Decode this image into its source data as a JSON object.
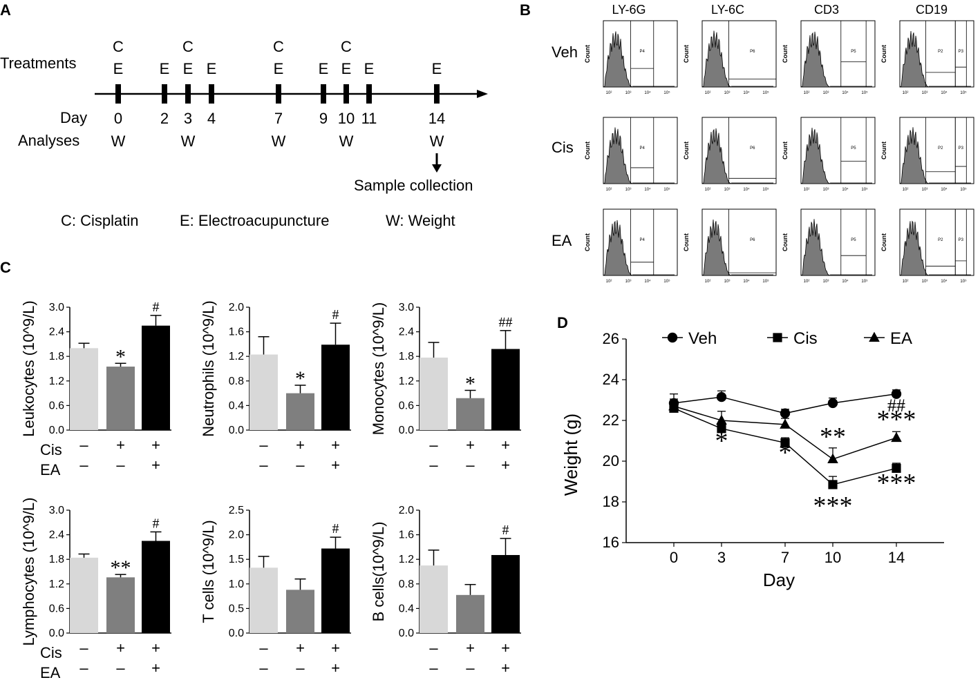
{
  "panels": {
    "a": "A",
    "b": "B",
    "c": "C",
    "d": "D"
  },
  "schedule": {
    "treatments_label": "Treatments",
    "day_label": "Day",
    "analyses_label": "Analyses",
    "days": [
      "0",
      "2",
      "3",
      "4",
      "7",
      "9",
      "10",
      "11",
      "14"
    ],
    "cisplatin_days": [
      "0",
      "3",
      "7",
      "10"
    ],
    "ea_days": [
      "0",
      "2",
      "3",
      "4",
      "7",
      "9",
      "10",
      "11",
      "14"
    ],
    "weight_days": [
      "0",
      "3",
      "7",
      "10",
      "14"
    ],
    "c_mark": "C",
    "e_mark": "E",
    "w_mark": "W",
    "sample_collection": "Sample collection",
    "legend": {
      "c": "C: Cisplatin",
      "e": "E: Electroacupuncture",
      "w": "W: Weight"
    }
  },
  "flow": {
    "columns": [
      "LY-6G",
      "LY-6C",
      "CD3",
      "CD19"
    ],
    "rows": [
      "Veh",
      "Cis",
      "EA"
    ],
    "axis_label": "Count",
    "gates": [
      "P4",
      "P6",
      "P5",
      "P2",
      "P3"
    ]
  },
  "design": {
    "cis_label": "Cis",
    "ea_label": "EA",
    "cis": [
      "–",
      "+",
      "+"
    ],
    "ea": [
      "–",
      "–",
      "+"
    ]
  },
  "colors": {
    "veh": "#d8d8d8",
    "cis": "#7f7f7f",
    "ea": "#000000"
  },
  "chart_data": [
    {
      "type": "bar",
      "ylabel": "Leukocytes (10^9/L)",
      "categories": [
        "Veh",
        "Cis",
        "EA"
      ],
      "values": [
        2.0,
        1.55,
        2.55
      ],
      "errors": [
        0.12,
        0.08,
        0.25
      ],
      "ylim": [
        0,
        3.0
      ],
      "ticks": [
        "0.0",
        "0.6",
        "1.2",
        "1.8",
        "2.4",
        "3.0"
      ],
      "annotations": [
        "",
        "*",
        "#"
      ]
    },
    {
      "type": "bar",
      "ylabel": "Neutrophils (10^9/L)",
      "categories": [
        "Veh",
        "Cis",
        "EA"
      ],
      "values": [
        1.23,
        0.6,
        1.39
      ],
      "errors": [
        0.29,
        0.13,
        0.35
      ],
      "ylim": [
        0,
        2.0
      ],
      "ticks": [
        "0.0",
        "0.4",
        "0.8",
        "1.2",
        "1.6",
        "2.0"
      ],
      "annotations": [
        "",
        "*",
        "#"
      ]
    },
    {
      "type": "bar",
      "ylabel": "Monocytes (10^9/L)",
      "categories": [
        "Veh",
        "Cis",
        "EA"
      ],
      "values": [
        1.77,
        0.78,
        1.98
      ],
      "errors": [
        0.37,
        0.19,
        0.45
      ],
      "ylim": [
        0,
        3.0
      ],
      "ticks": [
        "0.0",
        "0.6",
        "1.2",
        "1.8",
        "2.4",
        "3.0"
      ],
      "annotations": [
        "",
        "*",
        "##"
      ]
    },
    {
      "type": "bar",
      "ylabel": "Lymphocytes (10^9/L)",
      "categories": [
        "Veh",
        "Cis",
        "EA"
      ],
      "values": [
        1.84,
        1.36,
        2.25
      ],
      "errors": [
        0.09,
        0.07,
        0.22
      ],
      "ylim": [
        0,
        3.0
      ],
      "ticks": [
        "0.0",
        "0.6",
        "1.2",
        "1.8",
        "2.4",
        "3.0"
      ],
      "annotations": [
        "",
        "**",
        "#"
      ]
    },
    {
      "type": "bar",
      "ylabel": "T cells (10^9/L)",
      "categories": [
        "Veh",
        "Cis",
        "EA"
      ],
      "values": [
        1.33,
        0.88,
        1.72
      ],
      "errors": [
        0.23,
        0.22,
        0.23
      ],
      "ylim": [
        0,
        2.5
      ],
      "ticks": [
        "0.0",
        "0.5",
        "1.0",
        "1.5",
        "2.0",
        "2.5"
      ],
      "annotations": [
        "",
        "",
        "#"
      ]
    },
    {
      "type": "bar",
      "ylabel": "B cells(10^9/L)",
      "categories": [
        "Veh",
        "Cis",
        "EA"
      ],
      "values": [
        1.1,
        0.62,
        1.27
      ],
      "errors": [
        0.25,
        0.17,
        0.27
      ],
      "ylim": [
        0,
        2.0
      ],
      "ticks": [
        "0.0",
        "0.4",
        "0.8",
        "1.2",
        "1.6",
        "2.0"
      ],
      "annotations": [
        "",
        "",
        "#"
      ]
    },
    {
      "type": "line",
      "xlabel": "Day",
      "ylabel": "Weight (g)",
      "x": [
        0,
        3,
        7,
        10,
        14
      ],
      "xlim": [
        -3,
        17
      ],
      "ylim": [
        16,
        26
      ],
      "xticks": [
        "0",
        "3",
        "7",
        "10",
        "14"
      ],
      "yticks": [
        "16",
        "18",
        "20",
        "22",
        "24",
        "26"
      ],
      "series": [
        {
          "name": "Veh",
          "marker": "circle",
          "values": [
            22.85,
            23.15,
            22.35,
            22.85,
            23.3
          ],
          "errors": [
            0.45,
            0.3,
            0.2,
            0.25,
            0.2
          ]
        },
        {
          "name": "Cis",
          "marker": "square",
          "values": [
            22.6,
            21.6,
            20.9,
            18.85,
            19.65
          ],
          "errors": [
            0.3,
            0.3,
            0.25,
            0.4,
            0.25
          ]
        },
        {
          "name": "EA",
          "marker": "triangle",
          "values": [
            22.7,
            22.0,
            21.8,
            20.1,
            21.15
          ],
          "errors": [
            0.35,
            0.45,
            0.3,
            0.55,
            0.3
          ]
        }
      ],
      "annotations": [
        {
          "x": 3,
          "text": "*"
        },
        {
          "x": 7,
          "text": "*"
        },
        {
          "x": 10,
          "text": "**"
        },
        {
          "x": 10,
          "text": "***"
        },
        {
          "x": 14,
          "text": "##"
        },
        {
          "x": 14,
          "text": "***"
        },
        {
          "x": 14,
          "text": "***"
        }
      ]
    }
  ]
}
